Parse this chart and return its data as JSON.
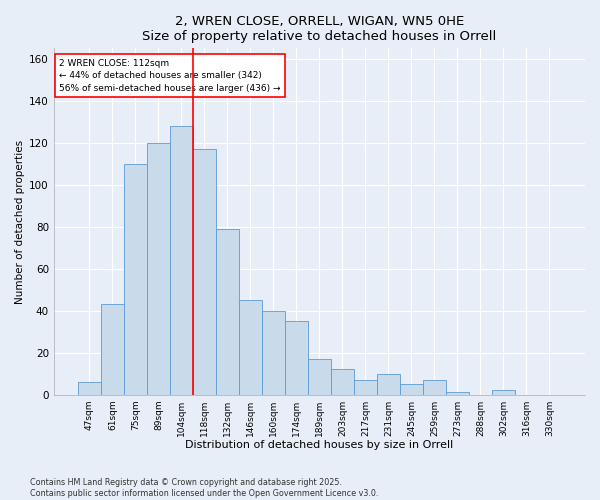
{
  "title": "2, WREN CLOSE, ORRELL, WIGAN, WN5 0HE",
  "subtitle": "Size of property relative to detached houses in Orrell",
  "xlabel": "Distribution of detached houses by size in Orrell",
  "ylabel": "Number of detached properties",
  "categories": [
    "47sqm",
    "61sqm",
    "75sqm",
    "89sqm",
    "104sqm",
    "118sqm",
    "132sqm",
    "146sqm",
    "160sqm",
    "174sqm",
    "189sqm",
    "203sqm",
    "217sqm",
    "231sqm",
    "245sqm",
    "259sqm",
    "273sqm",
    "288sqm",
    "302sqm",
    "316sqm",
    "330sqm"
  ],
  "values": [
    6,
    43,
    110,
    120,
    128,
    117,
    79,
    45,
    40,
    35,
    17,
    12,
    7,
    10,
    5,
    7,
    1,
    0,
    2,
    0,
    0
  ],
  "bar_color": "#c9daea",
  "bar_edge_color": "#5b9bd5",
  "vline_x_index": 5,
  "vline_color": "red",
  "annotation_text": "2 WREN CLOSE: 112sqm\n← 44% of detached houses are smaller (342)\n56% of semi-detached houses are larger (436) →",
  "annotation_box_color": "white",
  "annotation_box_edge": "red",
  "ylim": [
    0,
    165
  ],
  "yticks": [
    0,
    20,
    40,
    60,
    80,
    100,
    120,
    140,
    160
  ],
  "footer": "Contains HM Land Registry data © Crown copyright and database right 2025.\nContains public sector information licensed under the Open Government Licence v3.0.",
  "bg_color": "#e8eef7",
  "plot_bg_color": "#e8eef7",
  "grid_color": "#ffffff"
}
